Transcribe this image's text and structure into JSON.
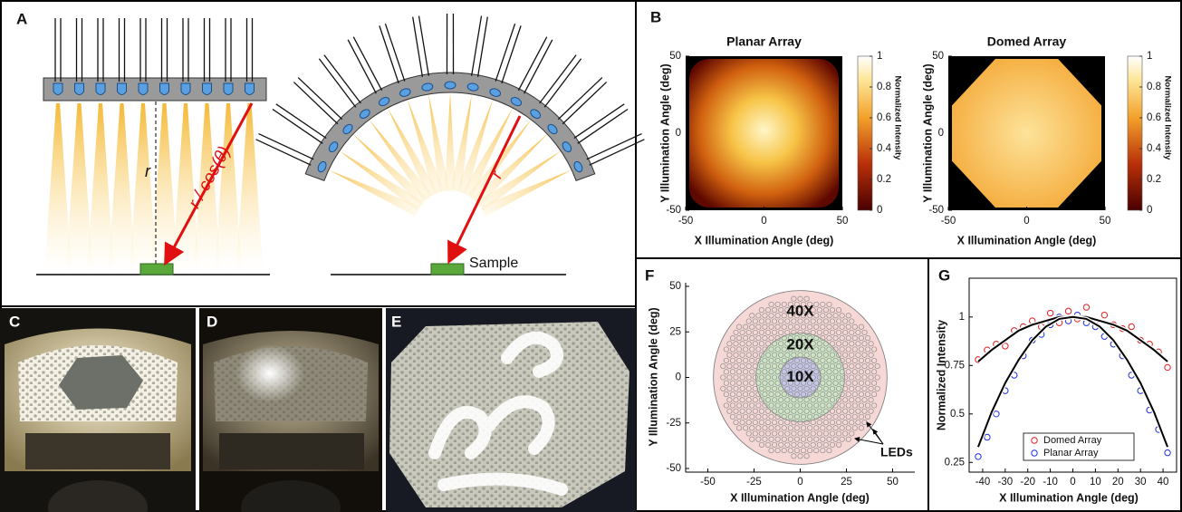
{
  "panels": {
    "A": {
      "label": "A",
      "planar_r": "r",
      "slant": "r / cos(θ)",
      "dome_r": "r",
      "sample": "Sample"
    },
    "B": {
      "label": "B",
      "maps": [
        {
          "title": "Planar Array",
          "xlabel": "X Illumination Angle (deg)",
          "ylabel": "Y Illumination Angle (deg)",
          "xlim": [
            -50,
            50
          ],
          "ylim": [
            -50,
            50
          ],
          "xticks": [
            -50,
            0,
            50
          ],
          "yticks": [
            -50,
            0,
            50
          ],
          "colorbar_label": "Normalized Intensity",
          "colorbar_lim": [
            0,
            1
          ],
          "colorbar_ticks": [
            0,
            0.2,
            0.4,
            0.6,
            0.8,
            1
          ]
        },
        {
          "title": "Domed Array",
          "xlabel": "X Illumination Angle (deg)",
          "ylabel": "Y Illumination Angle (deg)",
          "xlim": [
            -50,
            50
          ],
          "ylim": [
            -50,
            50
          ],
          "xticks": [
            -50,
            0,
            50
          ],
          "yticks": [
            -50,
            0,
            50
          ],
          "colorbar_label": "Normalized Intensity",
          "colorbar_lim": [
            0,
            1
          ],
          "colorbar_ticks": [
            0,
            0.2,
            0.4,
            0.6,
            0.8,
            1
          ]
        }
      ]
    },
    "C": {
      "label": "C"
    },
    "D": {
      "label": "D"
    },
    "E": {
      "label": "E"
    },
    "F": {
      "label": "F",
      "xlabel": "X Illumination Angle (deg)",
      "ylabel": "Y Illumination Angle (deg)",
      "xlim": [
        -62,
        62
      ],
      "ylim": [
        -52,
        52
      ],
      "xticks": [
        -50,
        -25,
        0,
        25,
        50
      ],
      "yticks": [
        -50,
        -25,
        0,
        25,
        50
      ],
      "regions": [
        {
          "label": "40X",
          "radius": 47,
          "color": "#f6d8d6"
        },
        {
          "label": "20X",
          "radius": 24,
          "color": "#cfe6c6"
        },
        {
          "label": "10X",
          "radius": 11,
          "color": "#c6c7e8"
        }
      ],
      "annotation": "LEDs"
    },
    "G": {
      "label": "G",
      "type": "scatter",
      "xlabel": "X Illumination Angle (deg)",
      "ylabel": "Normalized Intensity",
      "xlim": [
        -46,
        46
      ],
      "ylim": [
        0.2,
        1.2
      ],
      "xticks": [
        -40,
        -30,
        -20,
        -10,
        0,
        10,
        20,
        30,
        40
      ],
      "yticks": [
        0.25,
        0.5,
        0.75,
        1
      ],
      "series": [
        {
          "name": "Domed Array",
          "color": "#e02020",
          "x": [
            -42,
            -38,
            -34,
            -30,
            -26,
            -22,
            -18,
            -14,
            -10,
            -6,
            -2,
            2,
            6,
            10,
            14,
            18,
            22,
            26,
            30,
            34,
            38,
            42
          ],
          "values": [
            0.78,
            0.83,
            0.86,
            0.85,
            0.93,
            0.95,
            0.98,
            0.95,
            1.02,
            0.97,
            1.03,
            0.99,
            1.05,
            0.98,
            1.01,
            0.96,
            0.94,
            0.95,
            0.88,
            0.86,
            0.82,
            0.74
          ]
        },
        {
          "name": "Planar Array",
          "color": "#2030e0",
          "x": [
            -42,
            -38,
            -34,
            -30,
            -26,
            -22,
            -18,
            -14,
            -10,
            -6,
            -2,
            2,
            6,
            10,
            14,
            18,
            22,
            26,
            30,
            34,
            38,
            42
          ],
          "values": [
            0.28,
            0.38,
            0.5,
            0.62,
            0.7,
            0.8,
            0.88,
            0.91,
            0.96,
            1.0,
            0.98,
            1.01,
            0.97,
            0.95,
            0.9,
            0.86,
            0.8,
            0.7,
            0.62,
            0.52,
            0.42,
            0.3
          ]
        }
      ],
      "fits": [
        {
          "color": "#000000",
          "x": [
            -42,
            -36,
            -30,
            -24,
            -18,
            -12,
            -6,
            0,
            6,
            12,
            18,
            24,
            30,
            36,
            42
          ],
          "values": [
            0.77,
            0.83,
            0.88,
            0.93,
            0.96,
            0.98,
            1.0,
            1.0,
            1.0,
            0.98,
            0.96,
            0.93,
            0.88,
            0.83,
            0.77
          ]
        },
        {
          "color": "#000000",
          "x": [
            -42,
            -36,
            -30,
            -24,
            -18,
            -12,
            -6,
            0,
            6,
            12,
            18,
            24,
            30,
            36,
            42
          ],
          "values": [
            0.33,
            0.51,
            0.66,
            0.78,
            0.88,
            0.95,
            0.99,
            1.0,
            0.99,
            0.95,
            0.88,
            0.78,
            0.66,
            0.51,
            0.33
          ]
        }
      ]
    }
  }
}
